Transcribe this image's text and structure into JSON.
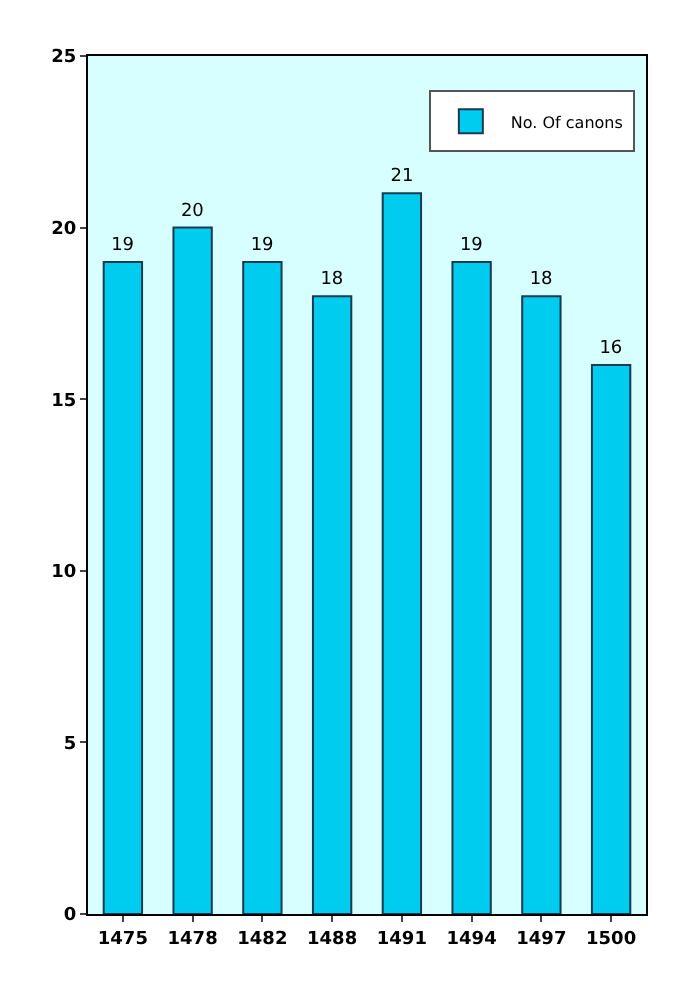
{
  "chart_data": {
    "type": "bar",
    "categories": [
      "1475",
      "1478",
      "1482",
      "1488",
      "1491",
      "1494",
      "1497",
      "1500"
    ],
    "series": [
      {
        "name": "No. Of canons",
        "color": "#00ccf0",
        "values": [
          19,
          20,
          19,
          18,
          21,
          19,
          18,
          16
        ]
      }
    ],
    "ylim": [
      0,
      25
    ],
    "yticks": [
      0,
      5,
      10,
      15,
      20,
      25
    ],
    "data_labels": true,
    "grid": false,
    "legend": "top right"
  }
}
